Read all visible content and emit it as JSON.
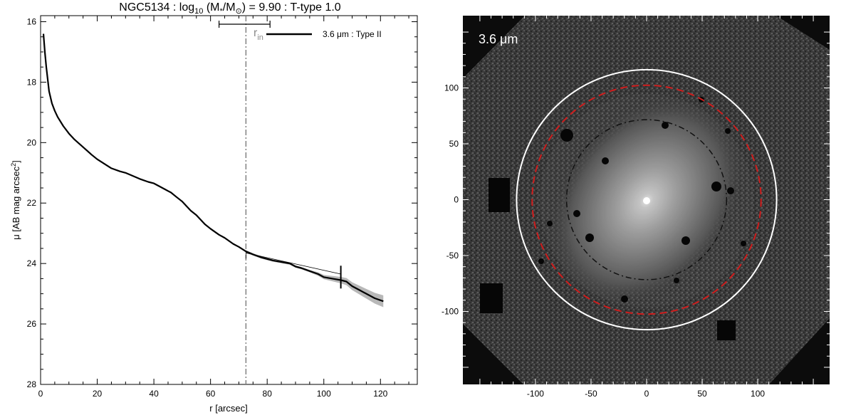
{
  "chart_data": [
    {
      "type": "line",
      "title_parts": {
        "name": "NGC5134 : log",
        "sub": "10",
        "mass": " (M",
        "star": "*",
        "slash": "/M",
        "sun": "⊙",
        "rest": ") = 9.90 : T-type 1.0"
      },
      "xlabel": "r [arcsec]",
      "ylabel_parts": {
        "main": "μ [AB mag arcsec",
        "sup": "2",
        "end": "]"
      },
      "xlim": [
        0,
        133
      ],
      "ylim": [
        28,
        15.8
      ],
      "y_inverted": true,
      "xticks": [
        0,
        20,
        40,
        60,
        80,
        100,
        120
      ],
      "yticks": [
        16,
        18,
        20,
        22,
        24,
        26,
        28
      ],
      "legend": {
        "label": "3.6 μm : Type II",
        "position": "top-right"
      },
      "annotation": {
        "label": "r",
        "sub": "in",
        "x": 72.5,
        "err_range": [
          63,
          81
        ]
      },
      "series": [
        {
          "x": [
            1,
            1.5,
            2,
            3,
            4,
            5,
            6,
            8,
            10,
            12,
            15,
            18,
            20,
            25,
            28,
            30,
            35,
            38,
            40,
            42,
            44,
            45,
            46,
            48,
            50,
            53,
            55,
            58,
            60,
            63,
            65,
            68,
            70,
            72.5,
            75,
            78,
            80,
            82,
            85,
            88,
            90,
            92,
            95,
            98,
            100,
            103,
            106,
            108,
            110,
            113,
            115,
            118,
            121
          ],
          "y": [
            16.4,
            17.0,
            17.5,
            18.3,
            18.7,
            18.95,
            19.15,
            19.45,
            19.7,
            19.9,
            20.15,
            20.4,
            20.55,
            20.85,
            20.95,
            21.0,
            21.2,
            21.3,
            21.35,
            21.45,
            21.55,
            21.6,
            21.65,
            21.8,
            21.95,
            22.25,
            22.4,
            22.7,
            22.85,
            23.05,
            23.15,
            23.35,
            23.45,
            23.6,
            23.7,
            23.8,
            23.85,
            23.9,
            23.95,
            24.0,
            24.1,
            24.15,
            24.25,
            24.35,
            24.45,
            24.5,
            24.55,
            24.6,
            24.75,
            24.9,
            25.0,
            25.15,
            25.25
          ]
        }
      ],
      "fit": {
        "x": [
          72.5,
          106
        ],
        "y": [
          23.65,
          24.35
        ]
      },
      "break_marker": {
        "x": 106,
        "y": 24.45
      }
    },
    {
      "type": "heatmap",
      "label": "3.6 μm",
      "xlim": [
        -165,
        165
      ],
      "ylim": [
        -165,
        165
      ],
      "xticks": [
        -100,
        -50,
        0,
        50,
        100
      ],
      "yticks": [
        -100,
        -50,
        0,
        50,
        100
      ],
      "circles": [
        {
          "r": 117,
          "color": "#ffffff",
          "style": "solid"
        },
        {
          "r": 103,
          "color": "#d01c1c",
          "style": "dashed"
        },
        {
          "r": 72,
          "color": "#111111",
          "style": "dashdot"
        }
      ]
    }
  ]
}
